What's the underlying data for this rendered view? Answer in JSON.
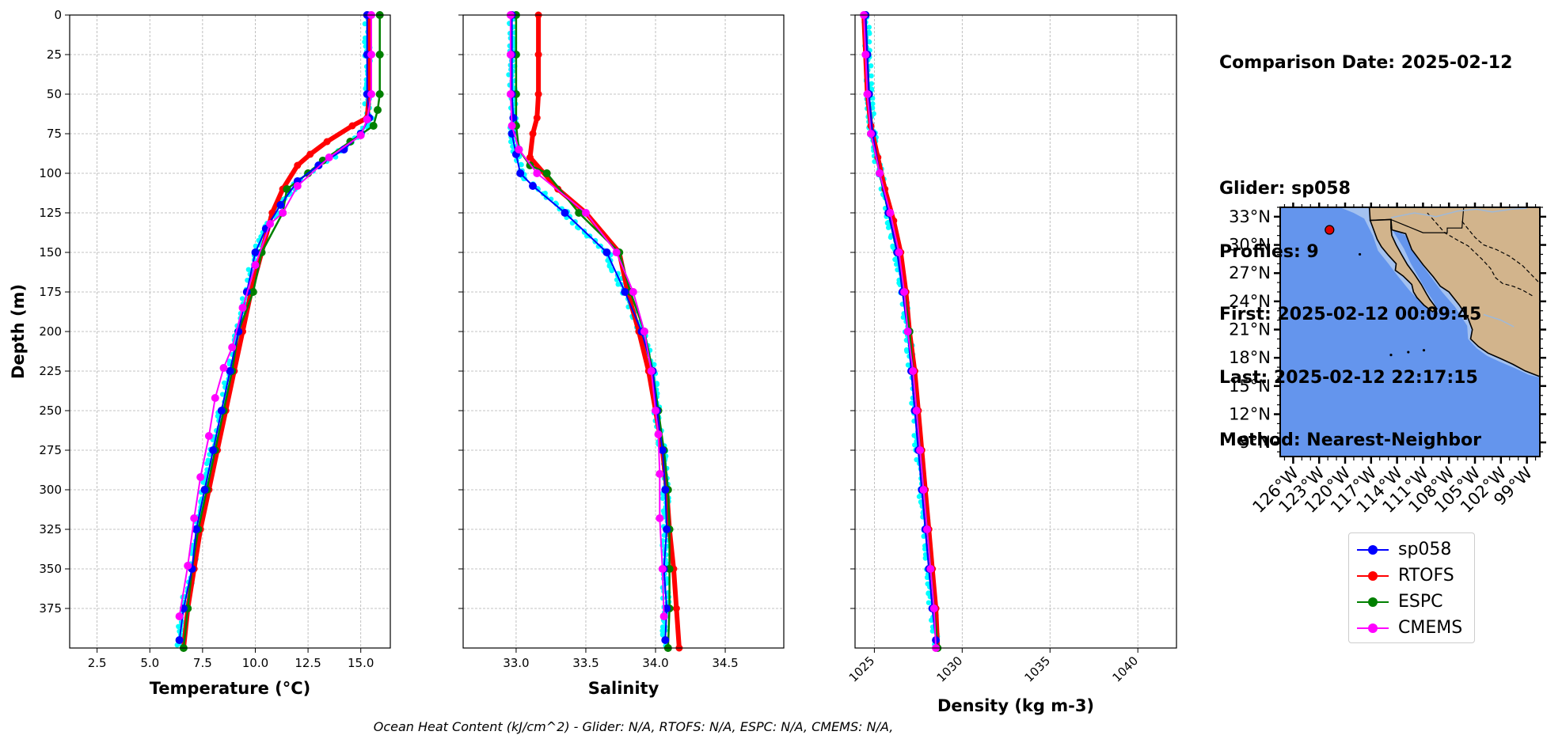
{
  "info": {
    "comparison_date": "Comparison Date: 2025-02-12",
    "glider": "Glider: sp058",
    "profiles": "Profiles: 9",
    "first": "First: 2025-02-12 00:09:45",
    "last": "Last: 2025-02-12 22:17:15",
    "method": "Method: Nearest-Neighbor"
  },
  "footer": "Ocean Heat Content (kJ/cm^2) - Glider: N/A,  RTOFS: N/A,  ESPC: N/A,  CMEMS: N/A,",
  "legend": [
    {
      "name": "sp058",
      "color": "#0000ff"
    },
    {
      "name": "RTOFS",
      "color": "#ff0000"
    },
    {
      "name": "ESPC",
      "color": "#008000"
    },
    {
      "name": "CMEMS",
      "color": "#ff00ff"
    }
  ],
  "colors": {
    "glider_scatter": "#00ffff",
    "ocean": "#6495ed",
    "shelf": "#a3c1f0",
    "land": "#d2b48c"
  },
  "chart_data": [
    {
      "type": "line",
      "xlabel": "Temperature (°C)",
      "ylabel": "Depth (m)",
      "xlim": [
        1.2,
        16.4
      ],
      "ylim": [
        400,
        0
      ],
      "x_ticks": [
        2.5,
        5.0,
        7.5,
        10.0,
        12.5,
        15.0
      ],
      "x_tick_labels": [
        "2.5",
        "5.0",
        "7.5",
        "10.0",
        "12.5",
        "15.0"
      ],
      "y_ticks": [
        0,
        25,
        50,
        75,
        100,
        125,
        150,
        175,
        200,
        225,
        250,
        275,
        300,
        325,
        350,
        375
      ],
      "grid": true,
      "series": [
        {
          "name": "sp058",
          "points": [
            [
              15.3,
              0
            ],
            [
              15.3,
              25
            ],
            [
              15.3,
              50
            ],
            [
              15.4,
              65
            ],
            [
              15.0,
              75
            ],
            [
              14.2,
              85
            ],
            [
              13.0,
              95
            ],
            [
              12.0,
              105
            ],
            [
              11.2,
              120
            ],
            [
              10.5,
              135
            ],
            [
              10.0,
              150
            ],
            [
              9.6,
              175
            ],
            [
              9.2,
              200
            ],
            [
              8.8,
              225
            ],
            [
              8.4,
              250
            ],
            [
              8.0,
              275
            ],
            [
              7.6,
              300
            ],
            [
              7.2,
              325
            ],
            [
              7.0,
              350
            ],
            [
              6.6,
              375
            ],
            [
              6.4,
              395
            ]
          ]
        },
        {
          "name": "RTOFS",
          "points": [
            [
              15.4,
              0
            ],
            [
              15.4,
              50
            ],
            [
              15.3,
              65
            ],
            [
              14.6,
              70
            ],
            [
              13.4,
              80
            ],
            [
              12.6,
              88
            ],
            [
              12.0,
              95
            ],
            [
              11.3,
              110
            ],
            [
              10.8,
              125
            ],
            [
              10.3,
              150
            ],
            [
              9.8,
              175
            ],
            [
              9.4,
              200
            ],
            [
              9.0,
              225
            ],
            [
              8.6,
              250
            ],
            [
              8.2,
              275
            ],
            [
              7.8,
              300
            ],
            [
              7.4,
              325
            ],
            [
              7.1,
              350
            ],
            [
              6.8,
              375
            ],
            [
              6.6,
              400
            ]
          ]
        },
        {
          "name": "ESPC",
          "points": [
            [
              15.9,
              0
            ],
            [
              15.9,
              25
            ],
            [
              15.9,
              50
            ],
            [
              15.8,
              60
            ],
            [
              15.6,
              70
            ],
            [
              14.5,
              80
            ],
            [
              13.2,
              92
            ],
            [
              12.5,
              100
            ],
            [
              11.5,
              110
            ],
            [
              11.3,
              125
            ],
            [
              10.3,
              150
            ],
            [
              9.9,
              175
            ],
            [
              9.2,
              200
            ],
            [
              8.9,
              225
            ],
            [
              8.5,
              250
            ],
            [
              8.1,
              275
            ],
            [
              7.7,
              300
            ],
            [
              7.3,
              325
            ],
            [
              7.0,
              350
            ],
            [
              6.8,
              375
            ],
            [
              6.6,
              400
            ]
          ]
        },
        {
          "name": "CMEMS",
          "points": [
            [
              15.5,
              0
            ],
            [
              15.5,
              25
            ],
            [
              15.5,
              50
            ],
            [
              15.3,
              66
            ],
            [
              15.0,
              76
            ],
            [
              13.5,
              90
            ],
            [
              12.0,
              108
            ],
            [
              11.3,
              125
            ],
            [
              10.7,
              132
            ],
            [
              10.0,
              158
            ],
            [
              9.4,
              185
            ],
            [
              8.9,
              210
            ],
            [
              8.5,
              223
            ],
            [
              8.1,
              242
            ],
            [
              7.8,
              266
            ],
            [
              7.4,
              292
            ],
            [
              7.1,
              318
            ],
            [
              6.8,
              348
            ],
            [
              6.4,
              380
            ]
          ]
        }
      ]
    },
    {
      "type": "line",
      "xlabel": "Salinity",
      "xlim": [
        32.62,
        34.92
      ],
      "ylim": [
        400,
        0
      ],
      "x_ticks": [
        33.0,
        33.5,
        34.0,
        34.5
      ],
      "x_tick_labels": [
        "33.0",
        "33.5",
        "34.0",
        "34.5"
      ],
      "grid": true,
      "series": [
        {
          "name": "sp058",
          "points": [
            [
              32.97,
              0
            ],
            [
              32.97,
              25
            ],
            [
              32.97,
              50
            ],
            [
              32.98,
              65
            ],
            [
              32.97,
              75
            ],
            [
              33.0,
              88
            ],
            [
              33.03,
              100
            ],
            [
              33.12,
              108
            ],
            [
              33.35,
              125
            ],
            [
              33.65,
              150
            ],
            [
              33.78,
              175
            ],
            [
              33.9,
              200
            ],
            [
              33.98,
              225
            ],
            [
              34.01,
              250
            ],
            [
              34.05,
              275
            ],
            [
              34.07,
              300
            ],
            [
              34.08,
              325
            ],
            [
              34.06,
              350
            ],
            [
              34.08,
              375
            ],
            [
              34.07,
              395
            ]
          ]
        },
        {
          "name": "RTOFS",
          "points": [
            [
              33.16,
              0
            ],
            [
              33.16,
              25
            ],
            [
              33.16,
              50
            ],
            [
              33.15,
              65
            ],
            [
              33.12,
              75
            ],
            [
              33.1,
              90
            ],
            [
              33.3,
              110
            ],
            [
              33.5,
              125
            ],
            [
              33.74,
              150
            ],
            [
              33.8,
              175
            ],
            [
              33.88,
              200
            ],
            [
              33.95,
              225
            ],
            [
              34.0,
              250
            ],
            [
              34.05,
              275
            ],
            [
              34.08,
              300
            ],
            [
              34.1,
              325
            ],
            [
              34.13,
              350
            ],
            [
              34.15,
              375
            ],
            [
              34.17,
              400
            ]
          ]
        },
        {
          "name": "ESPC",
          "points": [
            [
              33.0,
              0
            ],
            [
              33.0,
              25
            ],
            [
              33.0,
              50
            ],
            [
              33.0,
              70
            ],
            [
              33.02,
              85
            ],
            [
              33.1,
              95
            ],
            [
              33.22,
              100
            ],
            [
              33.45,
              125
            ],
            [
              33.74,
              150
            ],
            [
              33.82,
              175
            ],
            [
              33.92,
              200
            ],
            [
              33.98,
              225
            ],
            [
              34.02,
              250
            ],
            [
              34.06,
              275
            ],
            [
              34.09,
              300
            ],
            [
              34.1,
              325
            ],
            [
              34.1,
              350
            ],
            [
              34.1,
              375
            ],
            [
              34.09,
              400
            ]
          ]
        },
        {
          "name": "CMEMS",
          "points": [
            [
              32.96,
              0
            ],
            [
              32.96,
              25
            ],
            [
              32.96,
              50
            ],
            [
              32.97,
              70
            ],
            [
              33.02,
              85
            ],
            [
              33.15,
              100
            ],
            [
              33.5,
              125
            ],
            [
              33.72,
              150
            ],
            [
              33.84,
              175
            ],
            [
              33.92,
              200
            ],
            [
              33.97,
              225
            ],
            [
              34.0,
              250
            ],
            [
              34.02,
              265
            ],
            [
              34.03,
              290
            ],
            [
              34.03,
              318
            ],
            [
              34.05,
              350
            ],
            [
              34.06,
              380
            ]
          ]
        }
      ]
    },
    {
      "type": "line",
      "xlabel": "Density (kg m-3)",
      "xlim": [
        1023.9,
        1042.2
      ],
      "ylim": [
        400,
        0
      ],
      "x_ticks": [
        1025,
        1030,
        1035,
        1040
      ],
      "x_tick_labels": [
        "1025",
        "1030",
        "1035",
        "1040"
      ],
      "grid": true,
      "series": [
        {
          "name": "sp058",
          "points": [
            [
              1024.5,
              0
            ],
            [
              1024.6,
              25
            ],
            [
              1024.7,
              50
            ],
            [
              1024.9,
              75
            ],
            [
              1025.3,
              100
            ],
            [
              1025.8,
              125
            ],
            [
              1026.3,
              150
            ],
            [
              1026.6,
              175
            ],
            [
              1026.9,
              200
            ],
            [
              1027.1,
              225
            ],
            [
              1027.3,
              250
            ],
            [
              1027.5,
              275
            ],
            [
              1027.7,
              300
            ],
            [
              1027.9,
              325
            ],
            [
              1028.1,
              350
            ],
            [
              1028.3,
              375
            ],
            [
              1028.5,
              395
            ]
          ]
        },
        {
          "name": "RTOFS",
          "points": [
            [
              1024.4,
              0
            ],
            [
              1024.5,
              25
            ],
            [
              1024.6,
              50
            ],
            [
              1024.8,
              70
            ],
            [
              1025.2,
              90
            ],
            [
              1025.6,
              110
            ],
            [
              1026.1,
              130
            ],
            [
              1026.5,
              150
            ],
            [
              1026.8,
              175
            ],
            [
              1027.0,
              200
            ],
            [
              1027.3,
              225
            ],
            [
              1027.5,
              250
            ],
            [
              1027.7,
              275
            ],
            [
              1027.9,
              300
            ],
            [
              1028.1,
              325
            ],
            [
              1028.3,
              350
            ],
            [
              1028.5,
              375
            ],
            [
              1028.6,
              400
            ]
          ]
        },
        {
          "name": "ESPC",
          "points": [
            [
              1024.5,
              0
            ],
            [
              1024.6,
              25
            ],
            [
              1024.7,
              50
            ],
            [
              1024.8,
              75
            ],
            [
              1025.3,
              100
            ],
            [
              1025.8,
              125
            ],
            [
              1026.3,
              150
            ],
            [
              1026.7,
              175
            ],
            [
              1027.0,
              200
            ],
            [
              1027.2,
              225
            ],
            [
              1027.4,
              250
            ],
            [
              1027.6,
              275
            ],
            [
              1027.8,
              300
            ],
            [
              1028.0,
              325
            ],
            [
              1028.2,
              350
            ],
            [
              1028.4,
              375
            ],
            [
              1028.6,
              400
            ]
          ]
        },
        {
          "name": "CMEMS",
          "points": [
            [
              1024.4,
              0
            ],
            [
              1024.5,
              25
            ],
            [
              1024.6,
              50
            ],
            [
              1024.8,
              75
            ],
            [
              1025.3,
              100
            ],
            [
              1025.9,
              125
            ],
            [
              1026.4,
              150
            ],
            [
              1026.7,
              175
            ],
            [
              1026.9,
              200
            ],
            [
              1027.2,
              225
            ],
            [
              1027.4,
              250
            ],
            [
              1027.6,
              275
            ],
            [
              1027.8,
              300
            ],
            [
              1028.0,
              325
            ],
            [
              1028.2,
              350
            ],
            [
              1028.4,
              375
            ],
            [
              1028.5,
              400
            ]
          ]
        }
      ]
    }
  ],
  "map": {
    "lon_range": [
      -127.5,
      -97.5
    ],
    "lat_range": [
      7.5,
      34.0
    ],
    "lon_labels": [
      "126°W",
      "123°W",
      "120°W",
      "117°W",
      "114°W",
      "111°W",
      "108°W",
      "105°W",
      "102°W",
      "99°W"
    ],
    "lat_labels": [
      "33°N",
      "30°N",
      "27°N",
      "24°N",
      "21°N",
      "18°N",
      "15°N",
      "12°N",
      "9°N"
    ],
    "glider_location": [
      -121.8,
      31.6
    ]
  }
}
